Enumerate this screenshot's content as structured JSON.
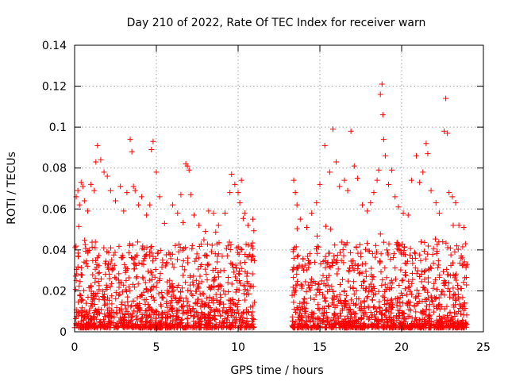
{
  "chart_data": {
    "type": "scatter",
    "title": "Day 210 of 2022, Rate Of TEC Index for receiver warn",
    "xlabel": "GPS time / hours",
    "ylabel": "ROTI / TECUs",
    "xlim": [
      0,
      25
    ],
    "ylim": [
      0,
      0.14
    ],
    "xticks": [
      0,
      5,
      10,
      15,
      20,
      25
    ],
    "yticks": [
      0,
      0.02,
      0.04,
      0.06,
      0.08,
      0.1,
      0.12,
      0.14
    ],
    "xtick_labels": [
      "0",
      "5",
      "10",
      "15",
      "20",
      "25"
    ],
    "ytick_labels": [
      "0",
      "0.02",
      "0.04",
      "0.06",
      "0.08",
      "0.1",
      "0.12",
      "0.14"
    ],
    "grid": true,
    "marker": "plus",
    "series_color": "#ff0000",
    "gap_hours": [
      11.0,
      13.3
    ],
    "points": [
      [
        0.1,
        0.066
      ],
      [
        0.2,
        0.069
      ],
      [
        0.3,
        0.062
      ],
      [
        0.4,
        0.073
      ],
      [
        0.5,
        0.071
      ],
      [
        0.6,
        0.064
      ],
      [
        0.8,
        0.059
      ],
      [
        1.0,
        0.072
      ],
      [
        1.2,
        0.069
      ],
      [
        1.3,
        0.083
      ],
      [
        1.4,
        0.091
      ],
      [
        1.6,
        0.084
      ],
      [
        1.8,
        0.078
      ],
      [
        2.0,
        0.076
      ],
      [
        2.2,
        0.069
      ],
      [
        2.5,
        0.064
      ],
      [
        2.8,
        0.071
      ],
      [
        3.0,
        0.059
      ],
      [
        3.2,
        0.068
      ],
      [
        3.4,
        0.094
      ],
      [
        3.5,
        0.088
      ],
      [
        3.6,
        0.071
      ],
      [
        3.7,
        0.069
      ],
      [
        3.9,
        0.062
      ],
      [
        4.1,
        0.066
      ],
      [
        4.4,
        0.057
      ],
      [
        4.6,
        0.062
      ],
      [
        4.7,
        0.089
      ],
      [
        4.8,
        0.093
      ],
      [
        5.0,
        0.078
      ],
      [
        5.2,
        0.066
      ],
      [
        5.5,
        0.053
      ],
      [
        6.0,
        0.062
      ],
      [
        6.3,
        0.058
      ],
      [
        6.5,
        0.067
      ],
      [
        6.8,
        0.082
      ],
      [
        6.9,
        0.081
      ],
      [
        7.0,
        0.079
      ],
      [
        7.1,
        0.067
      ],
      [
        7.3,
        0.057
      ],
      [
        7.6,
        0.052
      ],
      [
        8.0,
        0.049
      ],
      [
        8.2,
        0.059
      ],
      [
        8.5,
        0.058
      ],
      [
        8.8,
        0.052
      ],
      [
        9.2,
        0.058
      ],
      [
        9.5,
        0.068
      ],
      [
        9.6,
        0.077
      ],
      [
        9.8,
        0.072
      ],
      [
        10.0,
        0.068
      ],
      [
        10.1,
        0.063
      ],
      [
        10.2,
        0.074
      ],
      [
        10.4,
        0.058
      ],
      [
        10.6,
        0.052
      ],
      [
        10.9,
        0.055
      ],
      [
        13.4,
        0.074
      ],
      [
        13.5,
        0.068
      ],
      [
        13.6,
        0.062
      ],
      [
        13.8,
        0.055
      ],
      [
        14.2,
        0.051
      ],
      [
        14.5,
        0.058
      ],
      [
        14.8,
        0.063
      ],
      [
        15.0,
        0.072
      ],
      [
        15.3,
        0.091
      ],
      [
        15.6,
        0.078
      ],
      [
        15.8,
        0.099
      ],
      [
        16.0,
        0.083
      ],
      [
        16.2,
        0.071
      ],
      [
        16.5,
        0.074
      ],
      [
        16.7,
        0.069
      ],
      [
        16.9,
        0.098
      ],
      [
        17.1,
        0.081
      ],
      [
        17.3,
        0.075
      ],
      [
        17.6,
        0.062
      ],
      [
        17.9,
        0.059
      ],
      [
        18.1,
        0.063
      ],
      [
        18.3,
        0.068
      ],
      [
        18.5,
        0.074
      ],
      [
        18.6,
        0.079
      ],
      [
        18.7,
        0.116
      ],
      [
        18.8,
        0.121
      ],
      [
        18.85,
        0.106
      ],
      [
        18.9,
        0.094
      ],
      [
        19.0,
        0.086
      ],
      [
        19.2,
        0.072
      ],
      [
        19.4,
        0.079
      ],
      [
        19.6,
        0.066
      ],
      [
        19.8,
        0.061
      ],
      [
        20.1,
        0.058
      ],
      [
        20.4,
        0.057
      ],
      [
        20.6,
        0.074
      ],
      [
        20.9,
        0.086
      ],
      [
        21.1,
        0.073
      ],
      [
        21.3,
        0.078
      ],
      [
        21.5,
        0.092
      ],
      [
        21.6,
        0.087
      ],
      [
        21.8,
        0.069
      ],
      [
        22.1,
        0.063
      ],
      [
        22.3,
        0.058
      ],
      [
        22.6,
        0.098
      ],
      [
        22.7,
        0.114
      ],
      [
        22.8,
        0.097
      ],
      [
        22.9,
        0.068
      ],
      [
        23.1,
        0.066
      ],
      [
        23.3,
        0.063
      ],
      [
        23.5,
        0.052
      ],
      [
        23.8,
        0.051
      ],
      [
        23.9,
        0.043
      ]
    ]
  }
}
